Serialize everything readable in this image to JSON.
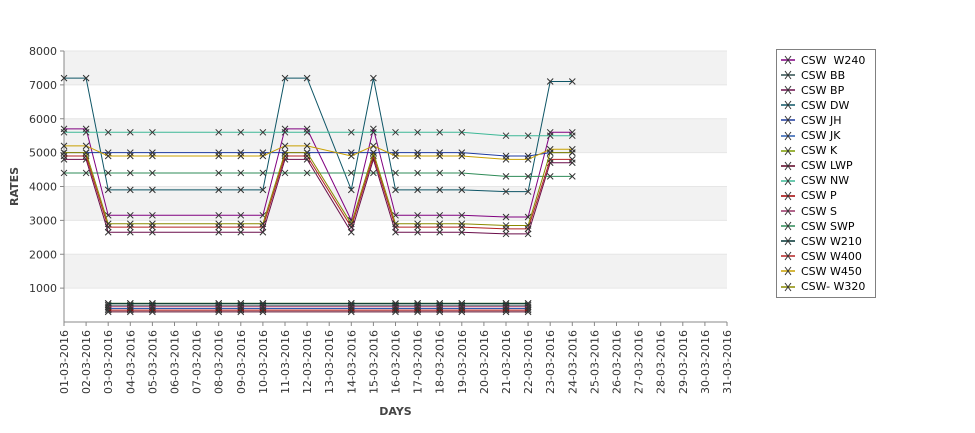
{
  "chart_data": {
    "type": "line",
    "title": "",
    "xlabel": "DAYS",
    "ylabel": "RATES",
    "ylim": [
      0,
      8000
    ],
    "yticks": [
      1000,
      2000,
      3000,
      4000,
      5000,
      6000,
      7000,
      8000
    ],
    "grid": "horizontal bands",
    "legend_position": "right",
    "categories": [
      "01-03-2016",
      "02-03-2016",
      "03-03-2016",
      "04-03-2016",
      "05-03-2016",
      "06-03-2016",
      "07-03-2016",
      "08-03-2016",
      "09-03-2016",
      "10-03-2016",
      "11-03-2016",
      "12-03-2016",
      "13-03-2016",
      "14-03-2016",
      "15-03-2016",
      "16-03-2016",
      "17-03-2016",
      "18-03-2016",
      "19-03-2016",
      "20-03-2016",
      "21-03-2016",
      "22-03-2016",
      "23-03-2016",
      "24-03-2016",
      "25-03-2016",
      "26-03-2016",
      "27-03-2016",
      "28-03-2016",
      "29-03-2016",
      "30-03-2016",
      "31-03-2016"
    ],
    "series": [
      {
        "name": "CSW  W240",
        "color": "#800080",
        "values": [
          5700,
          5700,
          3150,
          3150,
          3150,
          null,
          null,
          3150,
          3150,
          3150,
          5700,
          5700,
          null,
          3000,
          5700,
          3150,
          3150,
          3150,
          3150,
          null,
          3100,
          3100,
          5600,
          5600,
          null,
          null,
          null,
          null,
          null,
          null,
          null
        ]
      },
      {
        "name": "CSW BB",
        "color": "#2f4f4f",
        "values": [
          null,
          null,
          500,
          500,
          500,
          null,
          null,
          500,
          500,
          500,
          null,
          null,
          null,
          500,
          null,
          500,
          500,
          500,
          500,
          null,
          500,
          500,
          null,
          null,
          null,
          null,
          null,
          null,
          null,
          null,
          null
        ]
      },
      {
        "name": "CSW BP",
        "color": "#6a0d4a",
        "values": [
          4800,
          4800,
          2650,
          2650,
          2650,
          null,
          null,
          2650,
          2650,
          2650,
          4800,
          4800,
          null,
          2650,
          4800,
          2650,
          2650,
          2650,
          2650,
          null,
          2600,
          2600,
          4700,
          4700,
          null,
          null,
          null,
          null,
          null,
          null,
          null
        ]
      },
      {
        "name": "CSW DW",
        "color": "#0e5566",
        "values": [
          7200,
          7200,
          3900,
          3900,
          3900,
          null,
          null,
          3900,
          3900,
          3900,
          7200,
          7200,
          null,
          3900,
          7200,
          3900,
          3900,
          3900,
          3900,
          null,
          3850,
          3850,
          7100,
          7100,
          null,
          null,
          null,
          null,
          null,
          null,
          null
        ]
      },
      {
        "name": "CSW JH",
        "color": "#1e3a9e",
        "values": [
          5000,
          5000,
          5000,
          5000,
          5000,
          null,
          null,
          5000,
          5000,
          5000,
          5000,
          5000,
          null,
          5000,
          5000,
          5000,
          5000,
          5000,
          5000,
          null,
          4900,
          4900,
          5000,
          5000,
          null,
          null,
          null,
          null,
          null,
          null,
          null
        ]
      },
      {
        "name": "CSW JK",
        "color": "#2a5db0",
        "values": [
          null,
          null,
          400,
          400,
          400,
          null,
          null,
          400,
          400,
          400,
          null,
          null,
          null,
          400,
          null,
          400,
          400,
          400,
          400,
          null,
          400,
          400,
          null,
          null,
          null,
          null,
          null,
          null,
          null,
          null,
          null
        ]
      },
      {
        "name": "CSW K",
        "color": "#7a9a00",
        "values": [
          null,
          null,
          550,
          550,
          550,
          null,
          null,
          550,
          550,
          550,
          null,
          null,
          null,
          550,
          null,
          550,
          550,
          550,
          550,
          null,
          550,
          550,
          null,
          null,
          null,
          null,
          null,
          null,
          null,
          null,
          null
        ]
      },
      {
        "name": "CSW LWP",
        "color": "#5a0020",
        "values": [
          null,
          null,
          300,
          300,
          300,
          null,
          null,
          300,
          300,
          300,
          null,
          null,
          null,
          300,
          null,
          300,
          300,
          300,
          300,
          null,
          300,
          300,
          null,
          null,
          null,
          null,
          null,
          null,
          null,
          null,
          null
        ]
      },
      {
        "name": "CSW NW",
        "color": "#3cb896",
        "values": [
          5600,
          5600,
          5600,
          5600,
          5600,
          null,
          null,
          5600,
          5600,
          5600,
          5600,
          5600,
          null,
          5600,
          5600,
          5600,
          5600,
          5600,
          5600,
          null,
          5500,
          5500,
          5500,
          5500,
          null,
          null,
          null,
          null,
          null,
          null,
          null
        ]
      },
      {
        "name": "CSW P",
        "color": "#a00000",
        "values": [
          null,
          null,
          350,
          350,
          350,
          null,
          null,
          350,
          350,
          350,
          null,
          null,
          null,
          350,
          null,
          350,
          350,
          350,
          350,
          null,
          350,
          350,
          null,
          null,
          null,
          null,
          null,
          null,
          null,
          null,
          null
        ]
      },
      {
        "name": "CSW S",
        "color": "#993366",
        "values": [
          null,
          null,
          450,
          450,
          450,
          null,
          null,
          450,
          450,
          450,
          null,
          null,
          null,
          450,
          null,
          450,
          450,
          450,
          450,
          null,
          450,
          450,
          null,
          null,
          null,
          null,
          null,
          null,
          null,
          null,
          null
        ]
      },
      {
        "name": "CSW SWP",
        "color": "#2e8b57",
        "values": [
          4400,
          4400,
          4400,
          4400,
          4400,
          null,
          null,
          4400,
          4400,
          4400,
          4400,
          4400,
          null,
          4400,
          4400,
          4400,
          4400,
          4400,
          4400,
          null,
          4300,
          4300,
          4300,
          4300,
          null,
          null,
          null,
          null,
          null,
          null,
          null
        ]
      },
      {
        "name": "CSW W210",
        "color": "#003333",
        "values": [
          null,
          null,
          550,
          550,
          550,
          null,
          null,
          550,
          550,
          550,
          null,
          null,
          null,
          550,
          null,
          550,
          550,
          550,
          550,
          null,
          550,
          550,
          null,
          null,
          null,
          null,
          null,
          null,
          null,
          null,
          null
        ]
      },
      {
        "name": "CSW W400",
        "color": "#b22222",
        "values": [
          4900,
          4900,
          2800,
          2800,
          2800,
          null,
          null,
          2800,
          2800,
          2800,
          4900,
          4900,
          null,
          2800,
          4900,
          2800,
          2800,
          2800,
          2800,
          null,
          2750,
          2750,
          4800,
          4800,
          null,
          null,
          null,
          null,
          null,
          null,
          null
        ]
      },
      {
        "name": "CSW W450",
        "color": "#c8a000",
        "values": [
          5200,
          5200,
          4900,
          4900,
          4900,
          null,
          null,
          4900,
          4900,
          4900,
          5200,
          5200,
          null,
          4900,
          5200,
          4900,
          4900,
          4900,
          4900,
          null,
          4800,
          4800,
          5100,
          5100,
          null,
          null,
          null,
          null,
          null,
          null,
          null
        ]
      },
      {
        "name": "CSW- W320",
        "color": "#8a8a00",
        "values": [
          5000,
          5000,
          2900,
          2900,
          2900,
          null,
          null,
          2900,
          2900,
          2900,
          5000,
          5000,
          null,
          2900,
          5000,
          2900,
          2900,
          2900,
          2900,
          null,
          2850,
          2850,
          5000,
          5000,
          null,
          null,
          null,
          null,
          null,
          null,
          null
        ]
      }
    ]
  }
}
